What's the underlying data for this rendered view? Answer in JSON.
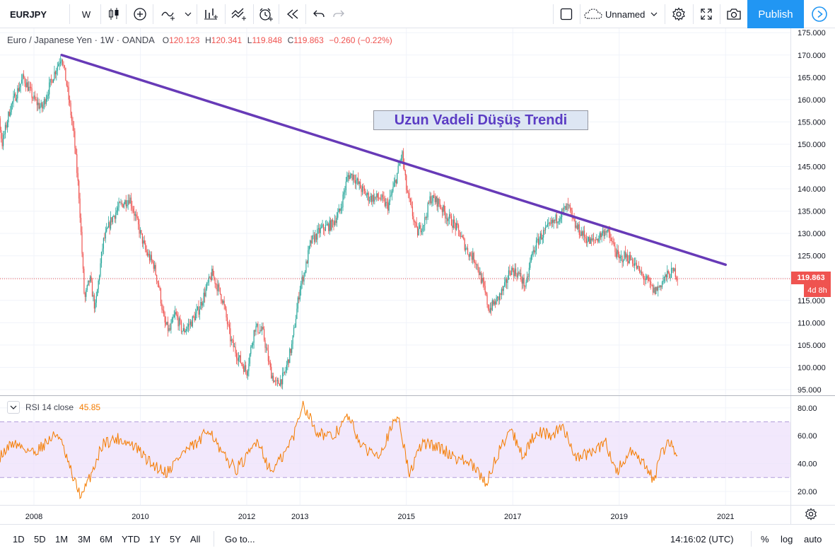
{
  "toolbar": {
    "symbol": "EURJPY",
    "interval": "W",
    "layout_name": "Unnamed",
    "publish_label": "Publish"
  },
  "legend": {
    "title": "Euro / Japanese Yen · 1W · OANDA",
    "o_label": "O",
    "o_value": "120.123",
    "h_label": "H",
    "h_value": "120.341",
    "l_label": "L",
    "l_value": "119.848",
    "c_label": "C",
    "c_value": "119.863",
    "change": "−0.260 (−0.22%)"
  },
  "annotation": "Uzun Vadeli Düşüş Trendi",
  "last_price": "119.863",
  "countdown": "4d 8h",
  "rsi_legend": {
    "label": "RSI 14 close",
    "value": "45.85"
  },
  "bottombar": {
    "ranges": [
      "1D",
      "5D",
      "1M",
      "3M",
      "6M",
      "YTD",
      "1Y",
      "5Y",
      "All"
    ],
    "goto": "Go to...",
    "clock": "14:16:02 (UTC)",
    "percent": "%",
    "log": "log",
    "auto": "auto"
  },
  "colors": {
    "up": "#26a69a",
    "down": "#ef5350",
    "trendline": "#673ab7",
    "rsi": "#f57c00",
    "rsi_band": "#ede0fb",
    "accent": "#2196f3"
  },
  "chart_data": [
    {
      "type": "candlestick",
      "title": "Euro / Japanese Yen · 1W · OANDA",
      "x_ticks": [
        "2008",
        "2010",
        "2012",
        "2013",
        "2015",
        "2017",
        "2019",
        "2021"
      ],
      "y_ticks": [
        "95.000",
        "100.000",
        "105.000",
        "110.000",
        "115.000",
        "120.000",
        "125.000",
        "130.000",
        "135.000",
        "140.000",
        "145.000",
        "150.000",
        "155.000",
        "160.000",
        "165.000",
        "170.000",
        "175.000"
      ],
      "ylim": [
        94,
        176
      ],
      "last_close": 119.863,
      "price_path": [
        {
          "t": 2007.0,
          "p": 162
        },
        {
          "t": 2007.12,
          "p": 168
        },
        {
          "t": 2007.25,
          "p": 166
        },
        {
          "t": 2007.4,
          "p": 150
        },
        {
          "t": 2007.55,
          "p": 158
        },
        {
          "t": 2007.8,
          "p": 165
        },
        {
          "t": 2008.0,
          "p": 160
        },
        {
          "t": 2008.15,
          "p": 158
        },
        {
          "t": 2008.35,
          "p": 165
        },
        {
          "t": 2008.52,
          "p": 169.9
        },
        {
          "t": 2008.62,
          "p": 163
        },
        {
          "t": 2008.75,
          "p": 152
        },
        {
          "t": 2008.85,
          "p": 138
        },
        {
          "t": 2008.95,
          "p": 115
        },
        {
          "t": 2009.05,
          "p": 120
        },
        {
          "t": 2009.15,
          "p": 113
        },
        {
          "t": 2009.3,
          "p": 128
        },
        {
          "t": 2009.45,
          "p": 133
        },
        {
          "t": 2009.6,
          "p": 136
        },
        {
          "t": 2009.8,
          "p": 138
        },
        {
          "t": 2009.95,
          "p": 132
        },
        {
          "t": 2010.1,
          "p": 126
        },
        {
          "t": 2010.25,
          "p": 123
        },
        {
          "t": 2010.35,
          "p": 118
        },
        {
          "t": 2010.45,
          "p": 110
        },
        {
          "t": 2010.55,
          "p": 108
        },
        {
          "t": 2010.65,
          "p": 112
        },
        {
          "t": 2010.8,
          "p": 108
        },
        {
          "t": 2010.95,
          "p": 110
        },
        {
          "t": 2011.1,
          "p": 113
        },
        {
          "t": 2011.25,
          "p": 118
        },
        {
          "t": 2011.35,
          "p": 121
        },
        {
          "t": 2011.45,
          "p": 118
        },
        {
          "t": 2011.55,
          "p": 115
        },
        {
          "t": 2011.7,
          "p": 106
        },
        {
          "t": 2011.85,
          "p": 102
        },
        {
          "t": 2012.0,
          "p": 99
        },
        {
          "t": 2012.15,
          "p": 109
        },
        {
          "t": 2012.3,
          "p": 108
        },
        {
          "t": 2012.45,
          "p": 99
        },
        {
          "t": 2012.55,
          "p": 96
        },
        {
          "t": 2012.7,
          "p": 98
        },
        {
          "t": 2012.85,
          "p": 105
        },
        {
          "t": 2013.0,
          "p": 118
        },
        {
          "t": 2013.1,
          "p": 122
        },
        {
          "t": 2013.2,
          "p": 128
        },
        {
          "t": 2013.4,
          "p": 131
        },
        {
          "t": 2013.6,
          "p": 132
        },
        {
          "t": 2013.75,
          "p": 135
        },
        {
          "t": 2013.9,
          "p": 143
        },
        {
          "t": 2014.0,
          "p": 143
        },
        {
          "t": 2014.15,
          "p": 140
        },
        {
          "t": 2014.3,
          "p": 138
        },
        {
          "t": 2014.5,
          "p": 138
        },
        {
          "t": 2014.65,
          "p": 136
        },
        {
          "t": 2014.8,
          "p": 142
        },
        {
          "t": 2014.92,
          "p": 148
        },
        {
          "t": 2015.0,
          "p": 140
        },
        {
          "t": 2015.1,
          "p": 135
        },
        {
          "t": 2015.2,
          "p": 130
        },
        {
          "t": 2015.35,
          "p": 133
        },
        {
          "t": 2015.45,
          "p": 138
        },
        {
          "t": 2015.6,
          "p": 137
        },
        {
          "t": 2015.75,
          "p": 134
        },
        {
          "t": 2015.9,
          "p": 132
        },
        {
          "t": 2016.0,
          "p": 130
        },
        {
          "t": 2016.15,
          "p": 126
        },
        {
          "t": 2016.3,
          "p": 124
        },
        {
          "t": 2016.45,
          "p": 118
        },
        {
          "t": 2016.55,
          "p": 113
        },
        {
          "t": 2016.7,
          "p": 115
        },
        {
          "t": 2016.85,
          "p": 118
        },
        {
          "t": 2016.95,
          "p": 122
        },
        {
          "t": 2017.1,
          "p": 121
        },
        {
          "t": 2017.25,
          "p": 118
        },
        {
          "t": 2017.35,
          "p": 125
        },
        {
          "t": 2017.5,
          "p": 129
        },
        {
          "t": 2017.65,
          "p": 131
        },
        {
          "t": 2017.8,
          "p": 133
        },
        {
          "t": 2017.95,
          "p": 135
        },
        {
          "t": 2018.05,
          "p": 136
        },
        {
          "t": 2018.15,
          "p": 132
        },
        {
          "t": 2018.3,
          "p": 130
        },
        {
          "t": 2018.45,
          "p": 128
        },
        {
          "t": 2018.6,
          "p": 129
        },
        {
          "t": 2018.75,
          "p": 131
        },
        {
          "t": 2018.9,
          "p": 127
        },
        {
          "t": 2019.0,
          "p": 124
        },
        {
          "t": 2019.1,
          "p": 125
        },
        {
          "t": 2019.25,
          "p": 124
        },
        {
          "t": 2019.4,
          "p": 121
        },
        {
          "t": 2019.55,
          "p": 119
        },
        {
          "t": 2019.65,
          "p": 117
        },
        {
          "t": 2019.75,
          "p": 118
        },
        {
          "t": 2019.85,
          "p": 120
        },
        {
          "t": 2019.95,
          "p": 121
        },
        {
          "t": 2020.05,
          "p": 121.5
        },
        {
          "t": 2020.1,
          "p": 119.863
        }
      ],
      "trendline": [
        {
          "t": 2008.52,
          "p": 170.0
        },
        {
          "t": 2021.0,
          "p": 123.0
        }
      ]
    },
    {
      "type": "line",
      "title": "RSI 14 close",
      "y_ticks": [
        "20.00",
        "40.00",
        "60.00",
        "80.00"
      ],
      "ylim": [
        12,
        86
      ],
      "bands": [
        30,
        70
      ],
      "last_value": 45.85,
      "rsi_path": [
        {
          "t": 2007.0,
          "v": 62
        },
        {
          "t": 2007.3,
          "v": 42
        },
        {
          "t": 2007.6,
          "v": 55
        },
        {
          "t": 2008.0,
          "v": 48
        },
        {
          "t": 2008.45,
          "v": 62
        },
        {
          "t": 2008.75,
          "v": 28
        },
        {
          "t": 2008.9,
          "v": 16
        },
        {
          "t": 2009.1,
          "v": 35
        },
        {
          "t": 2009.3,
          "v": 55
        },
        {
          "t": 2009.6,
          "v": 58
        },
        {
          "t": 2009.9,
          "v": 52
        },
        {
          "t": 2010.2,
          "v": 40
        },
        {
          "t": 2010.5,
          "v": 34
        },
        {
          "t": 2010.8,
          "v": 48
        },
        {
          "t": 2011.1,
          "v": 55
        },
        {
          "t": 2011.3,
          "v": 66
        },
        {
          "t": 2011.5,
          "v": 48
        },
        {
          "t": 2011.8,
          "v": 36
        },
        {
          "t": 2012.0,
          "v": 44
        },
        {
          "t": 2012.2,
          "v": 58
        },
        {
          "t": 2012.45,
          "v": 34
        },
        {
          "t": 2012.7,
          "v": 46
        },
        {
          "t": 2012.9,
          "v": 62
        },
        {
          "t": 2013.05,
          "v": 84
        },
        {
          "t": 2013.3,
          "v": 64
        },
        {
          "t": 2013.6,
          "v": 58
        },
        {
          "t": 2013.9,
          "v": 74
        },
        {
          "t": 2014.2,
          "v": 50
        },
        {
          "t": 2014.5,
          "v": 48
        },
        {
          "t": 2014.85,
          "v": 75
        },
        {
          "t": 2015.05,
          "v": 32
        },
        {
          "t": 2015.3,
          "v": 55
        },
        {
          "t": 2015.6,
          "v": 52
        },
        {
          "t": 2015.9,
          "v": 45
        },
        {
          "t": 2016.2,
          "v": 40
        },
        {
          "t": 2016.5,
          "v": 26
        },
        {
          "t": 2016.7,
          "v": 45
        },
        {
          "t": 2016.95,
          "v": 66
        },
        {
          "t": 2017.2,
          "v": 45
        },
        {
          "t": 2017.45,
          "v": 64
        },
        {
          "t": 2017.7,
          "v": 60
        },
        {
          "t": 2017.95,
          "v": 66
        },
        {
          "t": 2018.2,
          "v": 44
        },
        {
          "t": 2018.5,
          "v": 48
        },
        {
          "t": 2018.75,
          "v": 55
        },
        {
          "t": 2018.95,
          "v": 34
        },
        {
          "t": 2019.2,
          "v": 48
        },
        {
          "t": 2019.45,
          "v": 40
        },
        {
          "t": 2019.65,
          "v": 28
        },
        {
          "t": 2019.8,
          "v": 48
        },
        {
          "t": 2019.95,
          "v": 56
        },
        {
          "t": 2020.1,
          "v": 45.85
        }
      ]
    }
  ]
}
